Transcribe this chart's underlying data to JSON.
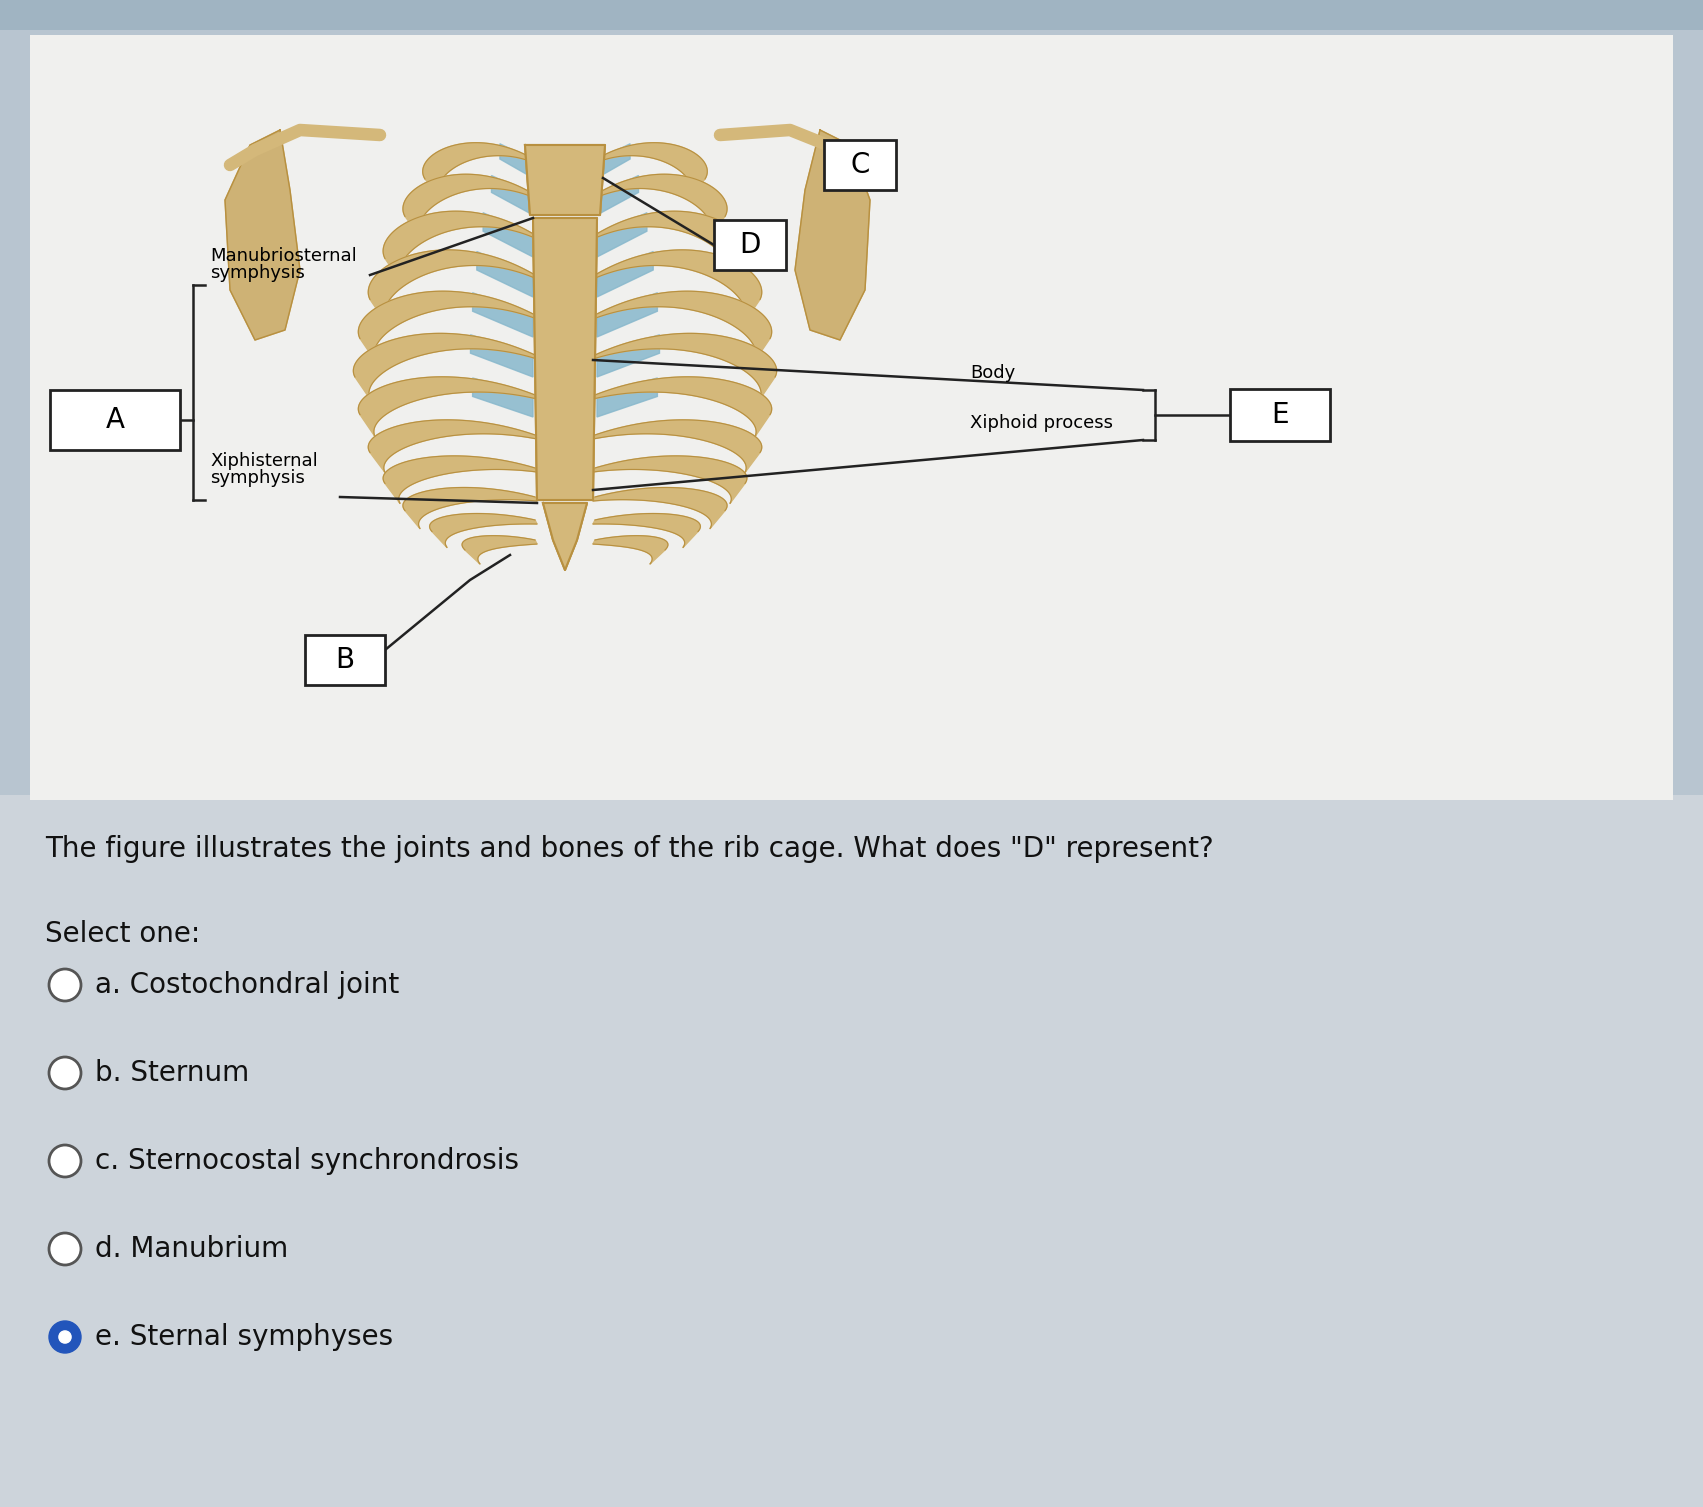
{
  "bg_color_outer": "#b8c5d0",
  "bg_color_panel": "#e8eaeb",
  "bg_color_bottom": "#c8cfd8",
  "question_text": "The figure illustrates the joints and bones of the rib cage. What does \"D\" represent?",
  "select_one_text": "Select one:",
  "options": [
    {
      "label": "a. Costochondral joint",
      "selected": false
    },
    {
      "label": "b. Sternum",
      "selected": false
    },
    {
      "label": "c. Sternocostal synchrondrosis",
      "selected": false
    },
    {
      "label": "d. Manubrium",
      "selected": false
    },
    {
      "label": "e. Sternal symphyses",
      "selected": true
    }
  ],
  "selected_color": "#2255bb",
  "text_color": "#111111",
  "font_size_question": 20,
  "font_size_options": 20,
  "bone_color": "#d4b87a",
  "bone_dark": "#b89040",
  "cart_color": "#88b8cc",
  "cart_dark": "#5090a8",
  "scapula_color": "#c8a860",
  "label_box_color": "white",
  "label_box_edge": "#222222",
  "line_color": "#222222"
}
